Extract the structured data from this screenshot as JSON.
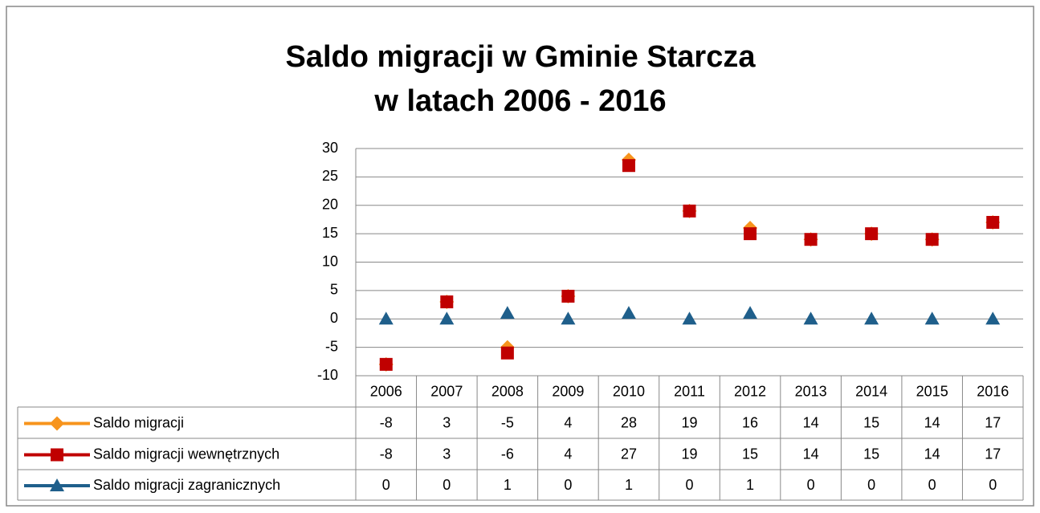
{
  "chart_data": {
    "type": "line",
    "title": [
      "Saldo migracji w Gminie Starcza",
      "w latach 2006 - 2016"
    ],
    "categories": [
      "2006",
      "2007",
      "2008",
      "2009",
      "2010",
      "2011",
      "2012",
      "2013",
      "2014",
      "2015",
      "2016"
    ],
    "series": [
      {
        "name": "Saldo migracji",
        "color": "#f7941d",
        "marker": "diamond",
        "values": [
          -8,
          3,
          -5,
          4,
          28,
          19,
          16,
          14,
          15,
          14,
          17
        ]
      },
      {
        "name": "Saldo migracji wewnętrznych",
        "color": "#c00000",
        "marker": "square",
        "values": [
          -8,
          3,
          -6,
          4,
          27,
          19,
          15,
          14,
          15,
          14,
          17
        ]
      },
      {
        "name": "Saldo migracji zagranicznych",
        "color": "#1f5f8b",
        "marker": "triangle",
        "values": [
          0,
          0,
          1,
          0,
          1,
          0,
          1,
          0,
          0,
          0,
          0
        ]
      }
    ],
    "ylim": [
      -10,
      30
    ],
    "yticks": [
      -10,
      -5,
      0,
      5,
      10,
      15,
      20,
      25,
      30
    ],
    "grid": true,
    "data_table": true
  }
}
